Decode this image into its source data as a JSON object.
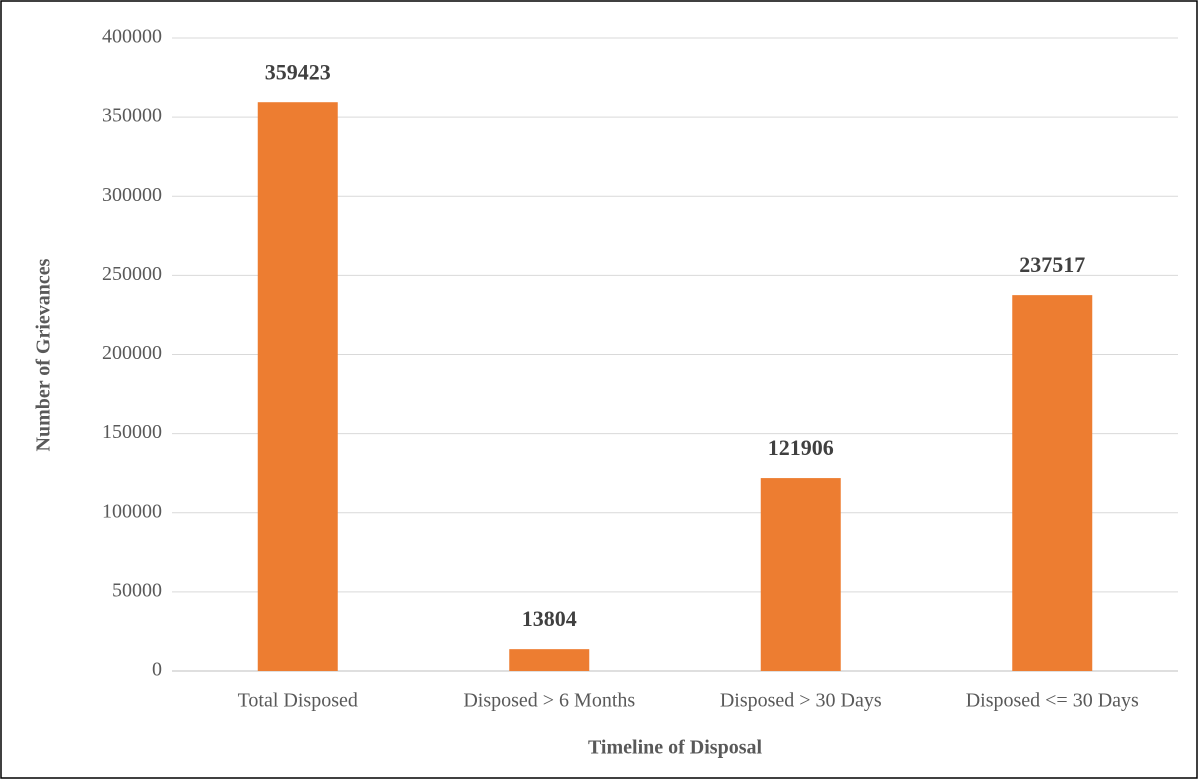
{
  "chart_data": {
    "type": "bar",
    "categories": [
      "Total Disposed",
      "Disposed > 6 Months",
      "Disposed > 30 Days",
      "Disposed <= 30 Days"
    ],
    "values": [
      359423,
      13804,
      121906,
      237517
    ],
    "color": "#ed7d31",
    "x_label": "Timeline of Disposal",
    "y_label": "Number of Grievances",
    "ylim": [
      0,
      400000
    ],
    "yticks": [
      0,
      50000,
      100000,
      150000,
      200000,
      250000,
      300000,
      350000,
      400000
    ],
    "grid": true
  }
}
